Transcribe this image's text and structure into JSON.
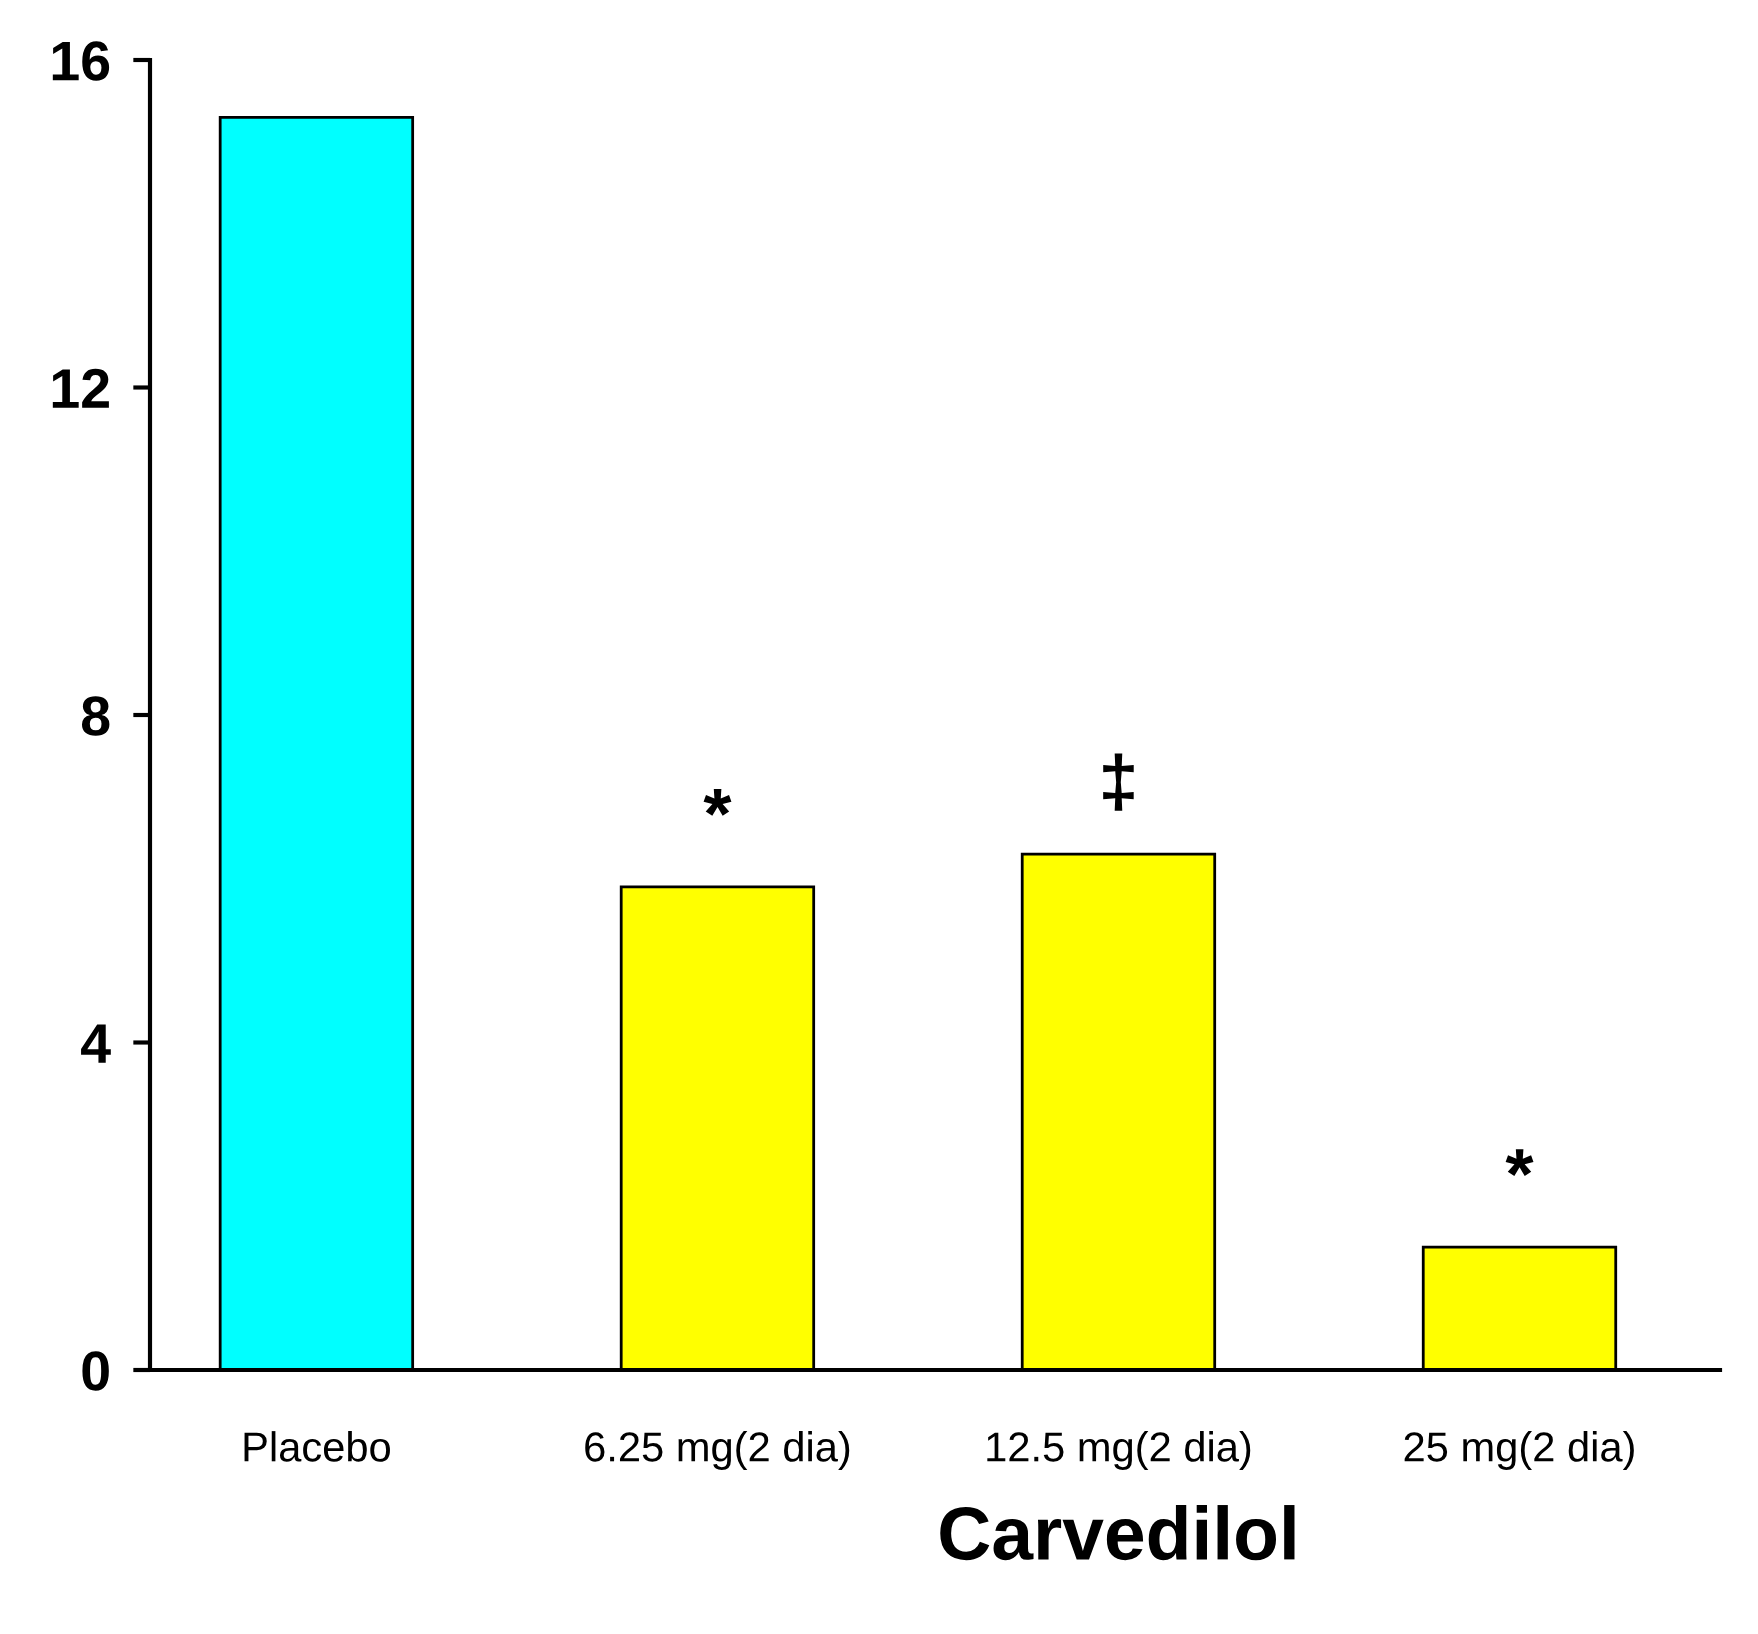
{
  "chart_data": {
    "type": "bar",
    "xlabel": "Carvedilol",
    "categories": [
      "Placebo",
      "6.25 mg(2 dia)",
      "12.5 mg(2 dia)",
      "25 mg(2 dia)"
    ],
    "values": [
      15.3,
      5.9,
      6.3,
      1.5
    ],
    "colors": [
      "#00ffff",
      "#ffff00",
      "#ffff00",
      "#ffff00"
    ],
    "ylim": [
      0,
      16
    ],
    "yticks": [
      0,
      4,
      8,
      12,
      16
    ],
    "grid": false,
    "annotations": [
      {
        "text": "*",
        "x": "6.25 mg(2 dia)",
        "y": 5.9
      },
      {
        "text": "‡",
        "x": "12.5 mg(2 dia)",
        "y": 6.3
      },
      {
        "text": "*",
        "x": "25 mg(2 dia)",
        "y": 1.5
      }
    ]
  }
}
